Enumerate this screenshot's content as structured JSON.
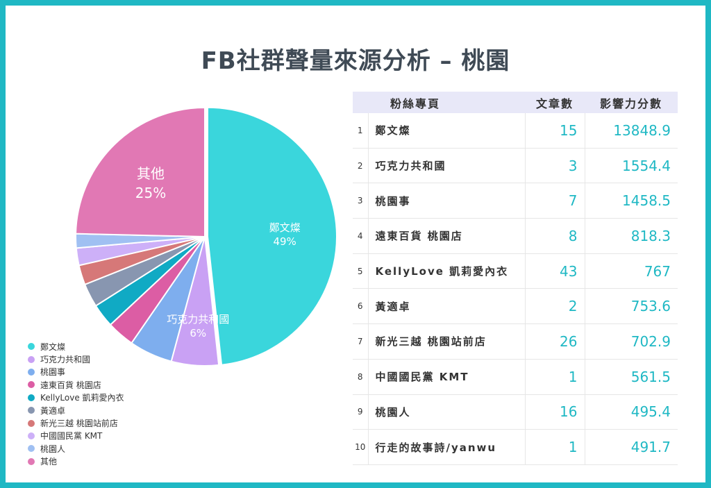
{
  "title": "FB社群聲量來源分析 – 桃園",
  "chart_data": [
    {
      "type": "pie",
      "categories": [
        "鄭文燦",
        "巧克力共和國",
        "桃園事",
        "遠東百貨 桃園店",
        "KellyLove 凱莉愛內衣",
        "黃適卓",
        "新光三越 桃園站前店",
        "中國國民黨 KMT",
        "桃園人",
        "其他"
      ],
      "values": [
        49,
        6,
        5.5,
        3.5,
        3,
        3,
        2.5,
        2.2,
        1.8,
        25
      ],
      "slice_labels": [
        {
          "name": "鄭文燦",
          "percent": "49%"
        },
        {
          "name": "巧克力共和國",
          "percent": "6%"
        },
        {
          "name": "其他",
          "percent": "25%"
        }
      ],
      "colors": [
        "#3ad6dc",
        "#c9a1f4",
        "#7eaeee",
        "#dc5da4",
        "#10aac4",
        "#8896b0",
        "#d67878",
        "#cdb0f8",
        "#a0c0f2",
        "#e178b4"
      ],
      "legend": "bottom-left"
    },
    {
      "type": "table",
      "columns": [
        "",
        "粉絲專頁",
        "文章數",
        "影響力分數"
      ],
      "rows": [
        {
          "rank": "1",
          "name": "鄭文燦",
          "articles": "15",
          "score": "13848.9"
        },
        {
          "rank": "2",
          "name": "巧克力共和國",
          "articles": "3",
          "score": "1554.4"
        },
        {
          "rank": "3",
          "name": "桃園事",
          "articles": "7",
          "score": "1458.5"
        },
        {
          "rank": "4",
          "name": "遠東百貨 桃園店",
          "articles": "8",
          "score": "818.3"
        },
        {
          "rank": "5",
          "name": "KellyLove 凱莉愛內衣",
          "articles": "43",
          "score": "767"
        },
        {
          "rank": "6",
          "name": "黃適卓",
          "articles": "2",
          "score": "753.6"
        },
        {
          "rank": "7",
          "name": "新光三越 桃園站前店",
          "articles": "26",
          "score": "702.9"
        },
        {
          "rank": "8",
          "name": "中國國民黨 KMT",
          "articles": "1",
          "score": "561.5"
        },
        {
          "rank": "9",
          "name": "桃園人",
          "articles": "16",
          "score": "495.4"
        },
        {
          "rank": "10",
          "name": "行走的故事詩/yanwu",
          "articles": "1",
          "score": "491.7"
        }
      ]
    }
  ]
}
